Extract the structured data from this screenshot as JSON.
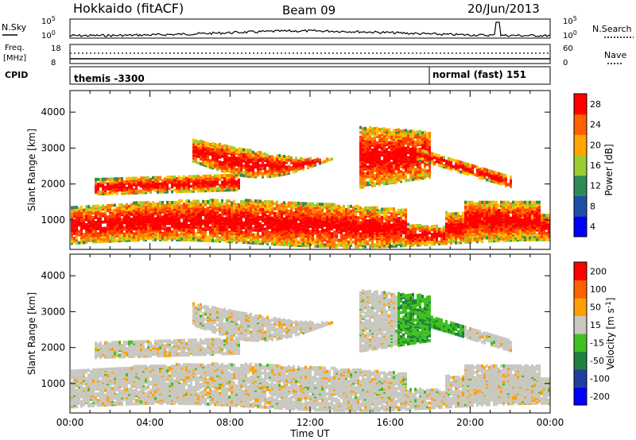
{
  "header": {
    "station": "Hokkaido (fitACF)",
    "beam": "Beam 09",
    "date": "20/Jun/2013"
  },
  "top_panel": {
    "nsky_label": "N.Sky",
    "nsearch_label": "N.Search",
    "noise_ticks": [
      "10^5",
      "10^0"
    ],
    "freq_label_1": "Freq.",
    "freq_label_2": "[MHz]",
    "freq_ticks": [
      "18",
      "8"
    ],
    "nave_label": "Nave",
    "nave_ticks": [
      "60",
      "0"
    ],
    "cpid_label": "CPID",
    "cpid_1": "themis -3300",
    "cpid_2": "normal (fast) 151"
  },
  "chart_data": [
    {
      "type": "heatmap",
      "name": "power",
      "xlabel": "Time UT",
      "ylabel": "Slant Range [km]",
      "x_ticks": [
        "00:00",
        "04:00",
        "08:00",
        "12:00",
        "16:00",
        "20:00",
        "00:00"
      ],
      "y_ticks": [
        1000,
        2000,
        3000,
        4000
      ],
      "ylim": [
        180,
        4600
      ],
      "colorbar_label": "Power [dB]",
      "colorbar_ticks": [
        "28",
        "24",
        "20",
        "16",
        "12",
        "8",
        "4"
      ],
      "colors": [
        "#0000ff",
        "#1f4fa8",
        "#2e8b57",
        "#9acd32",
        "#ffa500",
        "#ff6000",
        "#ff0000"
      ]
    },
    {
      "type": "heatmap",
      "name": "velocity",
      "xlabel": "Time UT",
      "ylabel": "Slant Range [km]",
      "x_ticks": [
        "00:00",
        "04:00",
        "08:00",
        "12:00",
        "16:00",
        "20:00",
        "00:00"
      ],
      "y_ticks": [
        1000,
        2000,
        3000,
        4000
      ],
      "ylim": [
        180,
        4600
      ],
      "colorbar_label": "Velocity [m s-1]",
      "colorbar_ticks": [
        "200",
        "100",
        "50",
        "15",
        "-15",
        "-50",
        "-100",
        "-200"
      ],
      "colors": [
        "#0000ff",
        "#2040a0",
        "#208040",
        "#40c020",
        "#c8c8c0",
        "#ffa000",
        "#ff6000",
        "#ff0000"
      ]
    }
  ]
}
